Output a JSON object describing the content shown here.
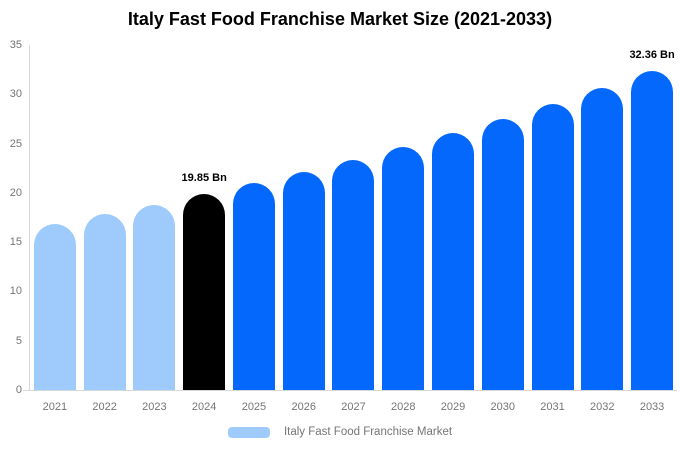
{
  "chart_data": {
    "type": "bar",
    "title": "Italy Fast Food Franchise Market Size (2021-2033)",
    "categories": [
      "2021",
      "2022",
      "2023",
      "2024",
      "2025",
      "2026",
      "2027",
      "2028",
      "2029",
      "2030",
      "2031",
      "2032",
      "2033"
    ],
    "values": [
      16.87,
      17.81,
      18.8,
      19.85,
      20.96,
      22.13,
      23.36,
      24.67,
      26.04,
      27.5,
      29.03,
      30.65,
      32.36
    ],
    "bar_roles": [
      "historical",
      "historical",
      "historical",
      "base_year",
      "forecast",
      "forecast",
      "forecast",
      "forecast",
      "forecast",
      "forecast",
      "forecast",
      "forecast",
      "forecast"
    ],
    "data_labels": [
      "",
      "",
      "",
      "19.85 Bn",
      "",
      "",
      "",
      "",
      "",
      "",
      "",
      "",
      "32.36 Bn"
    ],
    "xlabel": "",
    "ylabel": "",
    "ylim": [
      0,
      35
    ],
    "yticks": [
      "0",
      "5",
      "10",
      "15",
      "20",
      "25",
      "30",
      "35"
    ],
    "grid": false,
    "colors": {
      "historical": "#9ECBFB",
      "base_year": "#000000",
      "forecast": "#0568FC",
      "axis_line": "#D8D8D8",
      "axis_label": "#757575",
      "data_label": "#000000"
    },
    "legend": {
      "position": "bottom",
      "items": [
        {
          "label": "Italy Fast Food Franchise Market",
          "color": "#9ECBFB"
        }
      ]
    }
  }
}
